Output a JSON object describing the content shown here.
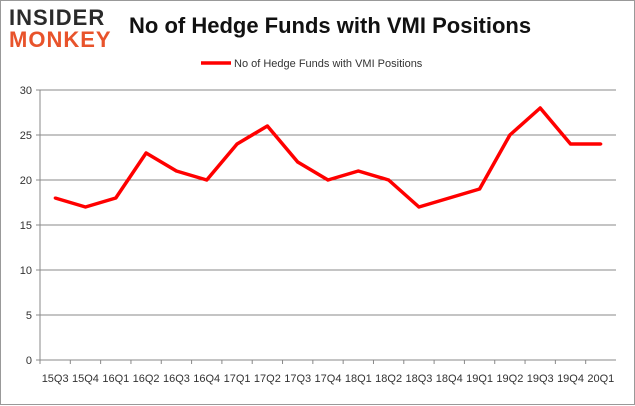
{
  "logo": {
    "line1": "INSIDER",
    "line2": "MONKEY"
  },
  "chart_data": {
    "type": "line",
    "title": "No of Hedge Funds with VMI Positions",
    "xlabel": "",
    "ylabel": "",
    "categories": [
      "15Q3",
      "15Q4",
      "16Q1",
      "16Q2",
      "16Q3",
      "16Q4",
      "17Q1",
      "17Q2",
      "17Q3",
      "17Q4",
      "18Q1",
      "18Q2",
      "18Q3",
      "18Q4",
      "19Q1",
      "19Q2",
      "19Q3",
      "19Q4",
      "20Q1"
    ],
    "series": [
      {
        "name": "No of Hedge Funds with VMI Positions",
        "values": [
          18,
          17,
          18,
          23,
          21,
          20,
          24,
          26,
          22,
          20,
          21,
          20,
          17,
          18,
          19,
          25,
          28,
          24,
          24
        ],
        "color": "#ff0000"
      }
    ],
    "ylim": [
      0,
      30
    ],
    "yticks": [
      0,
      5,
      10,
      15,
      20,
      25,
      30
    ],
    "grid": true,
    "legend": "top-center"
  }
}
